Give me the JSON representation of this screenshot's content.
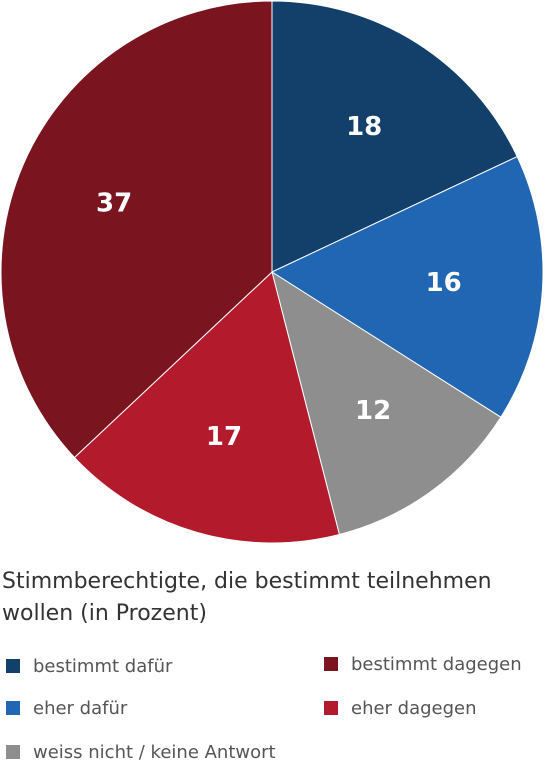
{
  "chart_data": {
    "type": "pie",
    "caption": "Stimmberechtigte, die bestimmt teilnehmen wollen (in Prozent)",
    "slices": [
      {
        "label": "bestimmt dafür",
        "value": 18,
        "color": "#12406b"
      },
      {
        "label": "eher dafür",
        "value": 16,
        "color": "#2066b3"
      },
      {
        "label": "weiss nicht / keine Antwort",
        "value": 12,
        "color": "#8e8e8e"
      },
      {
        "label": "eher dagegen",
        "value": 17,
        "color": "#b31b2c"
      },
      {
        "label": "bestimmt dagegen",
        "value": 37,
        "color": "#7a1520"
      }
    ],
    "start_angle_deg": 0,
    "direction": "clockwise"
  },
  "legend": {
    "items": [
      {
        "label": "bestimmt dafür",
        "color": "#12406b"
      },
      {
        "label": "bestimmt dagegen",
        "color": "#7a1520"
      },
      {
        "label": "eher dafür",
        "color": "#2066b3"
      },
      {
        "label": "eher dagegen",
        "color": "#b31b2c"
      },
      {
        "label": "weiss nicht / keine Antwort",
        "color": "#8e8e8e"
      }
    ]
  }
}
